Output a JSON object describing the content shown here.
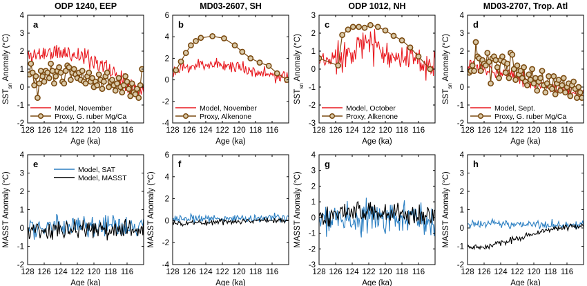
{
  "chart_data": [
    {
      "type": "line",
      "panel": "a",
      "title": "ODP 1240, EEP",
      "xlabel": "Age (ka)",
      "ylabel": "SST_sn Anomaly (°C)",
      "ylabel_parts": [
        "SST",
        "sn",
        " Anomaly (°C)"
      ],
      "xlim": [
        128,
        114
      ],
      "xticks": [
        128,
        126,
        124,
        122,
        120,
        118,
        116
      ],
      "ylim": [
        -2,
        4
      ],
      "yticks": [
        -2,
        -1,
        0,
        1,
        2,
        3,
        4
      ],
      "legend": "bottom-left",
      "grid": false,
      "series": [
        {
          "name": "Model, November",
          "color": "#e8181e",
          "style": "line",
          "noise": 0.5,
          "seed": 11,
          "x": [
            128,
            126,
            124,
            122,
            120,
            118,
            116,
            114.4
          ],
          "y": [
            1.7,
            1.9,
            1.9,
            1.8,
            1.5,
            0.9,
            0.3,
            -0.2
          ]
        },
        {
          "name": "Proxy, G. ruber Mg/Ca",
          "color": "#7a4a10",
          "style": "line-marker",
          "x": [
            127.8,
            127.6,
            127.4,
            127.2,
            127.0,
            126.8,
            126.6,
            126.4,
            126.2,
            126.0,
            125.8,
            125.6,
            125.4,
            125.2,
            125.0,
            124.8,
            124.6,
            124.4,
            124.2,
            124.0,
            123.8,
            123.6,
            123.4,
            123.2,
            123.0,
            122.8,
            122.6,
            122.4,
            122.2,
            122.0,
            121.8,
            121.6,
            121.4,
            121.2,
            121.0,
            120.8,
            120.6,
            120.4,
            120.2,
            120.0,
            119.8,
            119.6,
            119.4,
            119.2,
            119.0,
            118.8,
            118.6,
            118.4,
            118.2,
            118.0,
            117.8,
            117.6,
            117.4,
            117.2,
            117.0,
            116.8,
            116.6,
            116.4,
            116.2,
            116.0,
            115.8,
            115.6,
            115.4,
            115.2,
            115.0,
            114.8,
            114.6,
            114.4,
            114.2
          ],
          "y": [
            0.7,
            1.3,
            0.8,
            0.1,
            0.6,
            -0.6,
            0.2,
            0.9,
            0.6,
            0.3,
            0.9,
            0.8,
            0.5,
            1.3,
            0.9,
            0.2,
            0.6,
            0.9,
            1.1,
            0.8,
            0.3,
            0.2,
            0.9,
            1.2,
            1.1,
            0.4,
            0.8,
            1.0,
            0.7,
            0.5,
            0.8,
            0.4,
            0.9,
            0.3,
            0.2,
            0.6,
            0.8,
            0.3,
            0.5,
            0.0,
            0.3,
            0.1,
            0.7,
            0.4,
            -0.1,
            0.3,
            0.6,
            0.8,
            0.0,
            0.3,
            0.4,
            0.1,
            -0.2,
            0.2,
            0.5,
            0.0,
            -0.3,
            0.1,
            0.6,
            0.3,
            -0.1,
            -0.5,
            0.2,
            -0.3,
            -0.4,
            -0.1,
            -0.6,
            0.1,
            1.0
          ]
        }
      ]
    },
    {
      "type": "line",
      "panel": "b",
      "title": "MD03-2607, SH",
      "xlabel": "Age (ka)",
      "ylabel": "",
      "xlim": [
        128,
        114
      ],
      "xticks": [
        128,
        126,
        124,
        122,
        120,
        118,
        116
      ],
      "ylim": [
        -4,
        6
      ],
      "yticks": [
        -4,
        -2,
        0,
        2,
        4,
        6
      ],
      "legend": "bottom-left",
      "grid": false,
      "series": [
        {
          "name": "Model, November",
          "color": "#e8181e",
          "style": "line",
          "noise": 0.55,
          "seed": 23,
          "x": [
            128,
            126,
            124,
            122,
            120,
            118,
            116,
            114.2
          ],
          "y": [
            0.7,
            1.2,
            1.5,
            1.4,
            1.2,
            0.8,
            0.4,
            0.1
          ]
        },
        {
          "name": "Proxy, Alkenone",
          "color": "#7a4a10",
          "style": "line-marker",
          "x": [
            127.6,
            127.0,
            126.4,
            125.8,
            125.2,
            124.6,
            123.2,
            121.8,
            120.5,
            119.6,
            118.6,
            117.5,
            116.4,
            115.4,
            114.2
          ],
          "y": [
            0.9,
            1.7,
            2.5,
            3.2,
            3.6,
            3.9,
            4.05,
            3.85,
            3.2,
            2.6,
            2.0,
            1.6,
            1.3,
            0.6,
            0.0
          ]
        }
      ]
    },
    {
      "type": "line",
      "panel": "c",
      "title": "ODP 1012, NH",
      "xlabel": "Age (ka)",
      "ylabel": "SST_sn Anomaly (°C)",
      "ylabel_parts": [
        "SST",
        "sn",
        " Anomaly (°C)"
      ],
      "xlim": [
        128,
        114
      ],
      "xticks": [
        128,
        126,
        124,
        122,
        120,
        118,
        116
      ],
      "ylim": [
        -3,
        3
      ],
      "yticks": [
        -3,
        -2,
        -1,
        0,
        1,
        2,
        3
      ],
      "legend": "bottom-left",
      "grid": false,
      "series": [
        {
          "name": "Model, October",
          "color": "#e8181e",
          "style": "line",
          "noise": 0.8,
          "seed": 37,
          "x": [
            128,
            126,
            124,
            122,
            120,
            118,
            116,
            114.2
          ],
          "y": [
            0.3,
            0.6,
            1.2,
            1.4,
            1.0,
            0.6,
            0.3,
            0.0
          ]
        },
        {
          "name": "Proxy, Alkenone",
          "color": "#7a4a10",
          "style": "line-marker",
          "x": [
            128.0,
            125.7,
            125.2,
            124.5,
            123.9,
            123.2,
            122.5,
            121.8,
            120.9,
            120.0,
            119.0,
            118.0,
            117.0,
            116.0,
            114.6
          ],
          "y": [
            0.6,
            0.2,
            1.9,
            2.2,
            2.35,
            2.35,
            2.3,
            2.45,
            2.35,
            2.15,
            1.85,
            1.6,
            1.2,
            0.7,
            0.0
          ]
        }
      ]
    },
    {
      "type": "line",
      "panel": "d",
      "title": "MD03-2707, Trop. Atl",
      "xlabel": "Age (ka)",
      "ylabel": "SST_sn Anomaly (°C)",
      "ylabel_parts": [
        "SST",
        "sn",
        " Anomaly (°C)"
      ],
      "xlim": [
        128,
        114
      ],
      "xticks": [
        128,
        126,
        124,
        122,
        120,
        118,
        116
      ],
      "ylim": [
        -2,
        4
      ],
      "yticks": [
        -2,
        -1,
        0,
        1,
        2,
        3,
        4
      ],
      "legend": "bottom-left",
      "grid": false,
      "series": [
        {
          "name": "Model, Sept.",
          "color": "#e8181e",
          "style": "line",
          "noise": 0.35,
          "seed": 53,
          "x": [
            128,
            126,
            124,
            122,
            120,
            118,
            116,
            114.2
          ],
          "y": [
            1.1,
            1.0,
            0.9,
            0.6,
            0.3,
            0.0,
            -0.2,
            -0.4
          ]
        },
        {
          "name": "Proxy, G. ruber Mg/Ca",
          "color": "#7a4a10",
          "style": "line-marker",
          "x": [
            127.8,
            127.6,
            127.4,
            127.2,
            127.0,
            126.8,
            126.6,
            126.4,
            126.2,
            126.0,
            125.8,
            125.6,
            125.4,
            125.2,
            125.0,
            124.8,
            124.6,
            124.4,
            124.2,
            124.0,
            123.8,
            123.6,
            123.4,
            123.2,
            123.0,
            122.8,
            122.6,
            122.4,
            122.2,
            122.0,
            121.8,
            121.6,
            121.4,
            121.2,
            121.0,
            120.8,
            120.6,
            120.4,
            120.2,
            120.0,
            119.8,
            119.6,
            119.4,
            119.2,
            119.0,
            118.8,
            118.6,
            118.4,
            118.2,
            118.0,
            117.8,
            117.6,
            117.4,
            117.2,
            117.0,
            116.8,
            116.6,
            116.4,
            116.2,
            116.0,
            115.8,
            115.6,
            115.4,
            115.2,
            115.0,
            114.8,
            114.6,
            114.4,
            114.2
          ],
          "y": [
            0.8,
            0.9,
            1.2,
            0.9,
            2.5,
            1.7,
            1.6,
            0.9,
            1.5,
            1.3,
            1.2,
            1.9,
            1.4,
            0.2,
            1.6,
            1.7,
            1.5,
            1.1,
            0.5,
            1.5,
            1.7,
            1.4,
            0.8,
            1.3,
            0.5,
            1.9,
            1.8,
            1.0,
            0.4,
            1.2,
            0.7,
            0.9,
            0.5,
            1.1,
            0.3,
            0.1,
            0.7,
            0.4,
            1.0,
            0.2,
            0.5,
            -0.2,
            0.3,
            0.5,
            0.9,
            0.1,
            -0.3,
            0.2,
            0.6,
            0.0,
            -0.1,
            0.6,
            -0.4,
            0.2,
            0.4,
            -0.2,
            0.1,
            0.5,
            -0.3,
            0.0,
            0.2,
            -0.5,
            0.1,
            0.3,
            -0.1,
            -0.6,
            0.0,
            -0.3,
            -0.6
          ]
        }
      ]
    },
    {
      "type": "line",
      "panel": "e",
      "title": "",
      "xlabel": "Age (ka)",
      "ylabel": "MASST Anomaly (°C)",
      "xlim": [
        128,
        114
      ],
      "xticks": [
        128,
        126,
        124,
        122,
        120,
        118,
        116
      ],
      "ylim": [
        -2,
        4
      ],
      "yticks": [
        -2,
        -1,
        0,
        1,
        2,
        3,
        4
      ],
      "legend": "top-center",
      "grid": false,
      "series": [
        {
          "name": "Model, SAT",
          "color": "#2b7fc2",
          "style": "line",
          "noise": 0.55,
          "seed": 71,
          "x": [
            128,
            114
          ],
          "y": [
            0.05,
            0.05
          ]
        },
        {
          "name": "Model, MASST",
          "color": "#000000",
          "style": "line",
          "noise": 0.45,
          "seed": 79,
          "x": [
            128,
            114
          ],
          "y": [
            -0.1,
            -0.1
          ]
        }
      ]
    },
    {
      "type": "line",
      "panel": "f",
      "title": "",
      "xlabel": "Age (ka)",
      "ylabel": "MASST Anomaly (°C)",
      "xlim": [
        128,
        114
      ],
      "xticks": [
        128,
        126,
        124,
        122,
        120,
        118,
        116
      ],
      "ylim": [
        -4,
        6
      ],
      "yticks": [
        -4,
        -2,
        0,
        2,
        4,
        6
      ],
      "legend": "none",
      "grid": false,
      "series": [
        {
          "name": "",
          "color": "#2b7fc2",
          "style": "line",
          "noise": 0.35,
          "seed": 83,
          "x": [
            128,
            114
          ],
          "y": [
            0.15,
            0.25
          ]
        },
        {
          "name": "",
          "color": "#000000",
          "style": "line",
          "noise": 0.25,
          "seed": 89,
          "x": [
            128,
            114
          ],
          "y": [
            -0.25,
            0.1
          ]
        }
      ]
    },
    {
      "type": "line",
      "panel": "g",
      "title": "",
      "xlabel": "Age (ka)",
      "ylabel": "MASST Anomaly (°C)",
      "xlim": [
        128,
        114
      ],
      "xticks": [
        128,
        126,
        124,
        122,
        120,
        118,
        116
      ],
      "ylim": [
        -3,
        4
      ],
      "yticks": [
        -3,
        -2,
        -1,
        0,
        1,
        2,
        3,
        4
      ],
      "legend": "none",
      "grid": false,
      "series": [
        {
          "name": "",
          "color": "#2b7fc2",
          "style": "line",
          "noise": 0.95,
          "seed": 97,
          "x": [
            128,
            114
          ],
          "y": [
            -0.1,
            -0.1
          ]
        },
        {
          "name": "",
          "color": "#000000",
          "style": "line",
          "noise": 0.6,
          "seed": 101,
          "x": [
            128,
            124,
            120,
            114
          ],
          "y": [
            0.1,
            0.4,
            0.3,
            0.2
          ]
        }
      ]
    },
    {
      "type": "line",
      "panel": "h",
      "title": "",
      "xlabel": "Age (ka)",
      "ylabel": "MASST Anomaly (°C)",
      "xlim": [
        128,
        114
      ],
      "xticks": [
        128,
        126,
        124,
        122,
        120,
        118,
        116
      ],
      "ylim": [
        -2,
        4
      ],
      "yticks": [
        -2,
        -1,
        0,
        1,
        2,
        3,
        4
      ],
      "legend": "none",
      "grid": false,
      "series": [
        {
          "name": "",
          "color": "#2b7fc2",
          "style": "line",
          "noise": 0.2,
          "seed": 103,
          "x": [
            128,
            114
          ],
          "y": [
            0.25,
            0.15
          ]
        },
        {
          "name": "",
          "color": "#000000",
          "style": "line",
          "noise": 0.15,
          "seed": 107,
          "x": [
            128,
            126,
            124,
            122,
            120,
            118,
            116,
            114
          ],
          "y": [
            -1.0,
            -1.1,
            -0.8,
            -0.6,
            -0.3,
            -0.1,
            0.05,
            0.1
          ]
        }
      ]
    }
  ]
}
